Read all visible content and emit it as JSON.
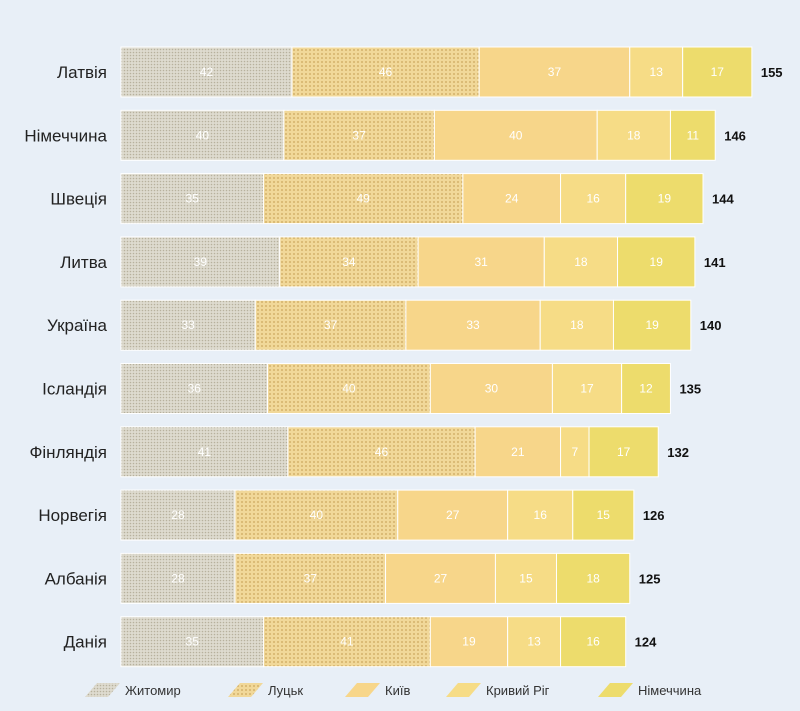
{
  "chart_data": {
    "type": "bar",
    "orientation": "horizontal",
    "stacked": true,
    "categories": [
      "Латвія",
      "Німеччина",
      "Швеція",
      "Литва",
      "Україна",
      "Ісландія",
      "Фінляндія",
      "Норвегія",
      "Албанія",
      "Данія"
    ],
    "series": [
      {
        "name": "Житомир",
        "color": "#d9d6c8",
        "pattern": "dots-fine",
        "values": [
          42,
          40,
          35,
          39,
          33,
          36,
          41,
          28,
          28,
          35
        ]
      },
      {
        "name": "Луцьк",
        "color": "#eed396",
        "pattern": "dots-coarse",
        "values": [
          46,
          37,
          49,
          34,
          37,
          40,
          46,
          40,
          37,
          41
        ]
      },
      {
        "name": "Київ",
        "color": "#f7d68a",
        "pattern": "none",
        "values": [
          37,
          40,
          24,
          31,
          33,
          30,
          21,
          27,
          27,
          19
        ]
      },
      {
        "name": "Кривий Ріг",
        "color": "#f6dc86",
        "pattern": "none",
        "values": [
          13,
          18,
          16,
          18,
          18,
          17,
          7,
          16,
          15,
          13
        ]
      },
      {
        "name": "Німеччина",
        "color": "#eddc6c",
        "pattern": "none",
        "values": [
          17,
          11,
          19,
          19,
          19,
          12,
          17,
          15,
          18,
          16
        ]
      }
    ],
    "totals": [
      155,
      146,
      144,
      141,
      140,
      135,
      132,
      126,
      125,
      124
    ],
    "xlim": [
      0,
      155
    ],
    "grid": false,
    "legend_position": "bottom"
  }
}
